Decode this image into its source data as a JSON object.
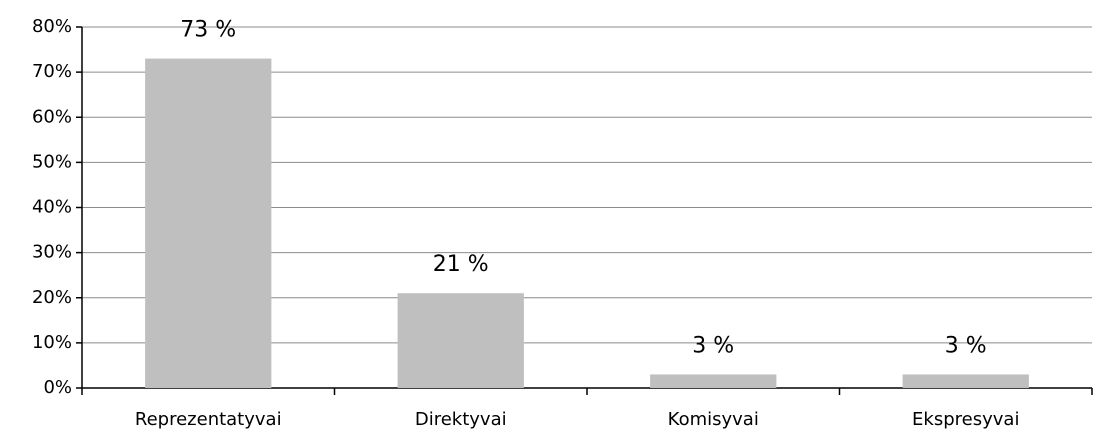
{
  "chart_data": {
    "type": "bar",
    "categories": [
      "Reprezentatyvai",
      "Direktyvai",
      "Komisyvai",
      "Ekspresyvai"
    ],
    "values": [
      73,
      21,
      3,
      3
    ],
    "value_labels": [
      "73 %",
      "21 %",
      "3 %",
      "3 %"
    ],
    "color": "#bfbfbf",
    "ylim": [
      0,
      80
    ],
    "yticks": [
      {
        "value": 0,
        "label": "0%"
      },
      {
        "value": 10,
        "label": "10%"
      },
      {
        "value": 20,
        "label": "20%"
      },
      {
        "value": 30,
        "label": "30%"
      },
      {
        "value": 40,
        "label": "40%"
      },
      {
        "value": 50,
        "label": "50%"
      },
      {
        "value": 60,
        "label": "60%"
      },
      {
        "value": 70,
        "label": "70%"
      },
      {
        "value": 80,
        "label": "80%"
      }
    ],
    "grid": true
  }
}
